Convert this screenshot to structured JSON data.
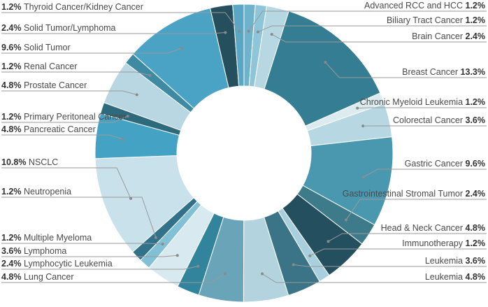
{
  "chart_data": {
    "type": "pie",
    "donut": true,
    "title": "",
    "slices": [
      {
        "label": "Advanced RCC and HCC",
        "pct_text": "1.2%",
        "value": 1.2,
        "color": "#6fb2cc",
        "side": "right"
      },
      {
        "label": "Biliary Tract Cancer",
        "pct_text": "1.2%",
        "value": 1.2,
        "color": "#8ec5d9",
        "side": "right"
      },
      {
        "label": "Brain Cancer",
        "pct_text": "2.4%",
        "value": 2.4,
        "color": "#b7d8e3",
        "side": "right"
      },
      {
        "label": "Breast Cancer",
        "pct_text": "13.3%",
        "value": 13.3,
        "color": "#347d92",
        "side": "right"
      },
      {
        "label": "Chronic Myeloid Leukemia",
        "pct_text": "1.2%",
        "value": 1.2,
        "color": "#dcebf0",
        "side": "right"
      },
      {
        "label": "Colorectal Cancer",
        "pct_text": "3.6%",
        "value": 3.6,
        "color": "#b7d8e3",
        "side": "right"
      },
      {
        "label": "Gastric Cancer",
        "pct_text": "9.6%",
        "value": 9.6,
        "color": "#4a97b0",
        "side": "right"
      },
      {
        "label": "Gastrointestinal Stromal Tumor",
        "pct_text": "2.4%",
        "value": 2.4,
        "color": "#3d7a8a",
        "side": "right"
      },
      {
        "label": "Head & Neck Cancer",
        "pct_text": "4.8%",
        "value": 4.8,
        "color": "#244f5e",
        "side": "right"
      },
      {
        "label": "Immunotherapy",
        "pct_text": "1.2%",
        "value": 1.2,
        "color": "#a8cfdd",
        "side": "right"
      },
      {
        "label": "Leukemia",
        "pct_text": "3.6%",
        "value": 3.6,
        "color": "#3a7486",
        "side": "right"
      },
      {
        "label": "Leukemia",
        "pct_text": "4.8%",
        "value": 4.8,
        "color": "#b3d4df",
        "side": "right"
      },
      {
        "label": "Lung Cancer",
        "pct_text": "4.8%",
        "value": 4.8,
        "color": "#6aa4b8",
        "side": "left"
      },
      {
        "label": "Lymphocytic Leukemia",
        "pct_text": "2.4%",
        "value": 2.4,
        "color": "#32849c",
        "side": "left"
      },
      {
        "label": "Lymphoma",
        "pct_text": "3.6%",
        "value": 3.6,
        "color": "#d8eaf0",
        "side": "left"
      },
      {
        "label": "Multiple Myeloma",
        "pct_text": "1.2%",
        "value": 1.2,
        "color": "#82c0d6",
        "side": "left"
      },
      {
        "label": "Neutropenia",
        "pct_text": "1.2%",
        "value": 1.2,
        "color": "#31718a",
        "side": "left"
      },
      {
        "label": "NSCLC",
        "pct_text": "10.8%",
        "value": 10.8,
        "color": "#c8e1ea",
        "side": "left"
      },
      {
        "label": "Pancreatic Cancer",
        "pct_text": "4.8%",
        "value": 4.8,
        "color": "#44a2c4",
        "side": "left"
      },
      {
        "label": "Primary Peritoneal Cancer",
        "pct_text": "1.2%",
        "value": 1.2,
        "color": "#2d6a7c",
        "side": "left"
      },
      {
        "label": "Prostate Cancer",
        "pct_text": "4.8%",
        "value": 4.8,
        "color": "#b8d7e2",
        "side": "left"
      },
      {
        "label": "Renal Cancer",
        "pct_text": "1.2%",
        "value": 1.2,
        "color": "#3e8aa3",
        "side": "left"
      },
      {
        "label": "Solid Tumor",
        "pct_text": "9.6%",
        "value": 9.6,
        "color": "#4aa3c4",
        "side": "left"
      },
      {
        "label": "Solid Tumor/Lymphoma",
        "pct_text": "2.4%",
        "value": 2.4,
        "color": "#264f5e",
        "side": "left"
      },
      {
        "label": "Thyroid Cancer/Kidney Cancer",
        "pct_text": "1.2%",
        "value": 1.2,
        "color": "#5aa7c5",
        "side": "left"
      }
    ]
  }
}
